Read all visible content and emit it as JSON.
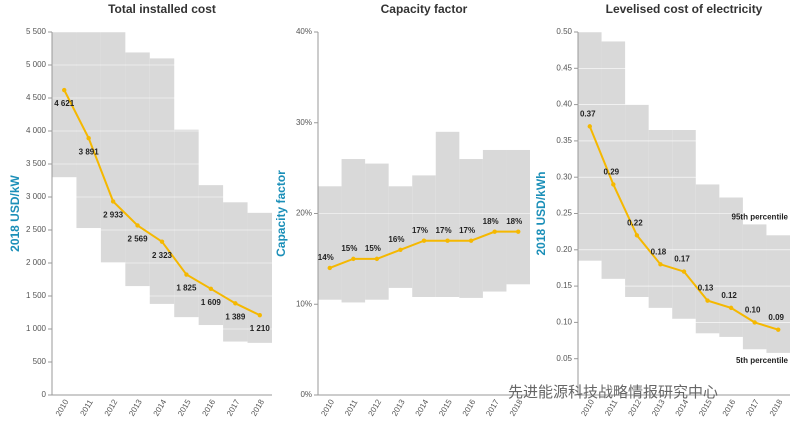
{
  "chart_data": [
    {
      "type": "line",
      "title": "Total installed cost",
      "y_label": "2018 USD/kW",
      "categories": [
        "2010",
        "2011",
        "2012",
        "2013",
        "2014",
        "2015",
        "2016",
        "2017",
        "2018"
      ],
      "values": [
        4621,
        3891,
        2933,
        2569,
        2323,
        1825,
        1609,
        1389,
        1210
      ],
      "value_labels": [
        "4 621",
        "3 891",
        "2 933",
        "2 569",
        "2 323",
        "1 825",
        "1 609",
        "1 389",
        "1 210"
      ],
      "band_upper": [
        5500,
        5500,
        5500,
        5190,
        5100,
        4020,
        3180,
        2920,
        2760
      ],
      "band_lower": [
        3300,
        2530,
        2010,
        1650,
        1380,
        1180,
        1060,
        810,
        790
      ],
      "color": "#f5b800",
      "band_color": "#d9d9d9",
      "ylim": [
        0,
        5500
      ],
      "yticks": [
        0,
        500,
        {
          "value": 1000,
          "label": "1 000"
        },
        {
          "value": 1500,
          "label": "1 500"
        },
        {
          "value": 2000,
          "label": "2 000"
        },
        {
          "value": 2500,
          "label": "2 500"
        },
        {
          "value": 3000,
          "label": "3 000"
        },
        {
          "value": 3500,
          "label": "3 500"
        },
        {
          "value": 4000,
          "label": "4 000"
        },
        {
          "value": 4500,
          "label": "4 500"
        },
        {
          "value": 5000,
          "label": "5 000"
        },
        {
          "value": 5500,
          "label": "5 500"
        }
      ],
      "grid": true
    },
    {
      "type": "line",
      "title": "Capacity factor",
      "y_label": "Capacity factor",
      "categories": [
        "2010",
        "2011",
        "2012",
        "2013",
        "2014",
        "2015",
        "2016",
        "2017",
        "2018"
      ],
      "values": [
        14,
        15,
        15,
        16,
        17,
        17,
        17,
        18,
        18
      ],
      "value_labels": [
        "14%",
        "15%",
        "15%",
        "16%",
        "17%",
        "17%",
        "17%",
        "18%",
        "18%"
      ],
      "band_upper": [
        23,
        26,
        25.5,
        23,
        24.2,
        29,
        26,
        27,
        27
      ],
      "band_lower": [
        10.5,
        10.2,
        10.5,
        11.8,
        10.8,
        10.8,
        10.7,
        11.4,
        12.2
      ],
      "color": "#f5b800",
      "band_color": "#d9d9d9",
      "ylim": [
        0,
        40
      ],
      "yticks": [
        {
          "value": 0,
          "label": "0%"
        },
        {
          "value": 10,
          "label": "10%"
        },
        {
          "value": 20,
          "label": "20%"
        },
        {
          "value": 30,
          "label": "30%"
        },
        {
          "value": 40,
          "label": "40%"
        }
      ],
      "grid": true
    },
    {
      "type": "line",
      "title": "Levelised cost of electricity",
      "y_label": "2018 USD/kWh",
      "categories": [
        "2010",
        "2011",
        "2012",
        "2013",
        "2014",
        "2015",
        "2016",
        "2017",
        "2018"
      ],
      "values": [
        0.37,
        0.29,
        0.22,
        0.18,
        0.17,
        0.13,
        0.12,
        0.1,
        0.09
      ],
      "value_labels": [
        "0.37",
        "0.29",
        "0.22",
        "0.18",
        "0.17",
        "0.13",
        "0.12",
        "0.10",
        "0.09"
      ],
      "band_upper": [
        0.5,
        0.487,
        0.4,
        0.365,
        0.365,
        0.29,
        0.272,
        0.235,
        0.22
      ],
      "band_lower": [
        0.185,
        0.16,
        0.135,
        0.12,
        0.105,
        0.085,
        0.08,
        0.063,
        0.058
      ],
      "annotations": [
        "95th percentile",
        "5th percentile"
      ],
      "color": "#f5b800",
      "band_color": "#d9d9d9",
      "ylim": [
        0,
        0.5
      ],
      "yticks": [
        0.05,
        {
          "value": 0.1,
          "label": "0.10"
        },
        0.15,
        {
          "value": 0.2,
          "label": "0.20"
        },
        0.25,
        {
          "value": 0.3,
          "label": "0.30"
        },
        0.35,
        {
          "value": 0.4,
          "label": "0.40"
        },
        0.45,
        {
          "value": 0.5,
          "label": "0.50"
        }
      ],
      "grid": true
    }
  ],
  "watermark": "先进能源科技战略情报研究中心"
}
